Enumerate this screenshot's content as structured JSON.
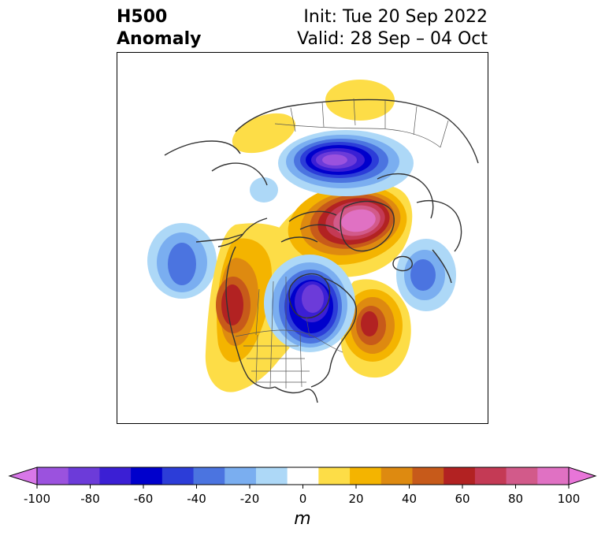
{
  "title": {
    "variable": "H500",
    "kind": "Anomaly",
    "init": "Init: Tue 20 Sep 2022",
    "valid": "Valid: 28 Sep – 04 Oct"
  },
  "colorbar": {
    "units": "m",
    "ticks": [
      "-100",
      "-80",
      "-60",
      "-40",
      "-20",
      "0",
      "20",
      "40",
      "60",
      "80",
      "100"
    ],
    "colors": [
      "#d877e8",
      "#9b52de",
      "#6c3bd9",
      "#3b1fd4",
      "#0000cc",
      "#2c3dd8",
      "#4b74e0",
      "#7aaef0",
      "#add8f7",
      "#ffffff",
      "#fddd47",
      "#f4b400",
      "#de8a10",
      "#c75a1a",
      "#b22222",
      "#c43a55",
      "#d25a8a",
      "#e071c3",
      "#e875d8"
    ],
    "extend": "both"
  },
  "map": {
    "projection": "polar stereographic, North America / Arctic",
    "features": [
      {
        "name": "Arctic Ocean trough",
        "anomaly_min_m": -90
      },
      {
        "name": "Greenland ridge",
        "anomaly_max_m": 100
      },
      {
        "name": "West Coast ridge",
        "anomaly_max_m": 60
      },
      {
        "name": "Hudson Bay trough",
        "anomaly_min_m": -80
      },
      {
        "name": "Northwest Atlantic ridge",
        "anomaly_max_m": 60
      },
      {
        "name": "North Pacific trough",
        "anomaly_min_m": -50
      },
      {
        "name": "Northeast Atlantic trough",
        "anomaly_min_m": -50
      },
      {
        "name": "Siberia ridge",
        "anomaly_max_m": 20
      },
      {
        "name": "Alaska/Chukchi ridge",
        "anomaly_max_m": 20
      }
    ]
  }
}
